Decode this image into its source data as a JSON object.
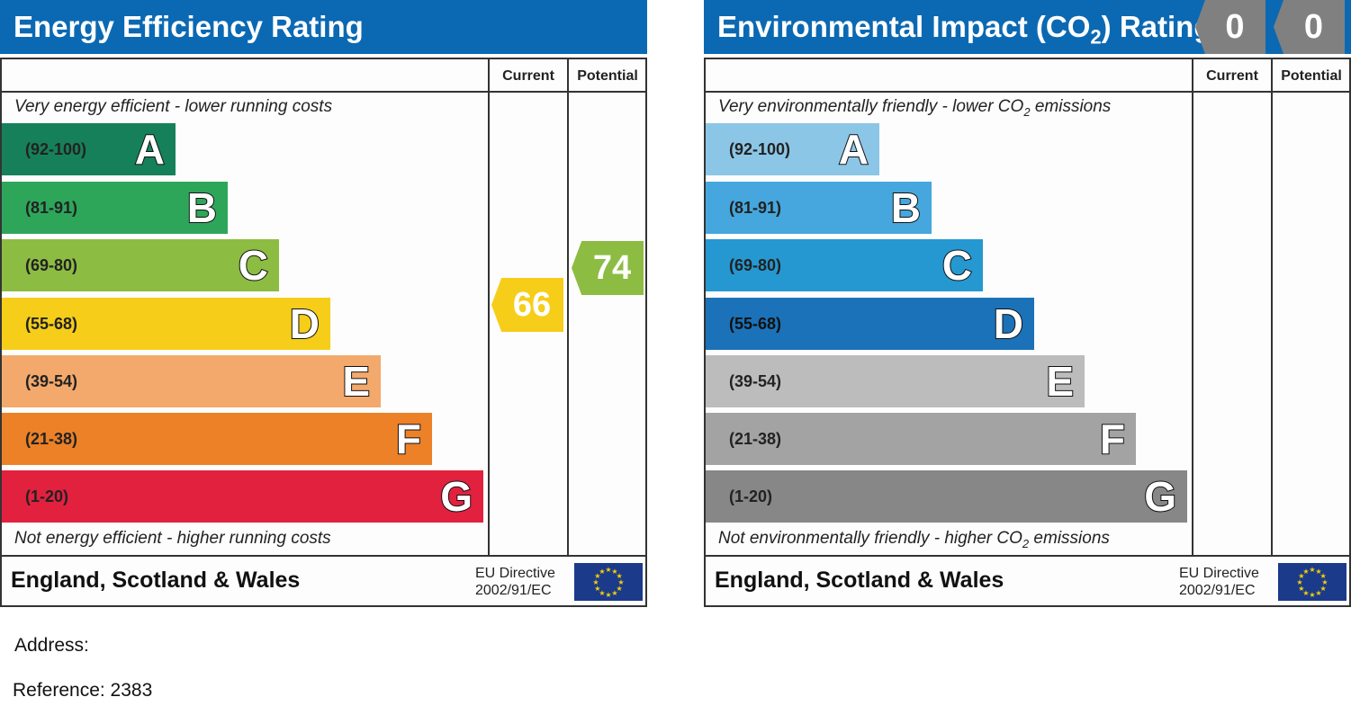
{
  "energy": {
    "title": "Energy Efficiency Rating",
    "col_current": "Current",
    "col_potential": "Potential",
    "top_note": "Very energy efficient - lower running costs",
    "bottom_note": "Not energy efficient - higher running costs",
    "bands": [
      {
        "range": "(92-100)",
        "letter": "A",
        "color": "#16805a"
      },
      {
        "range": "(81-91)",
        "letter": "B",
        "color": "#2ea65a"
      },
      {
        "range": "(69-80)",
        "letter": "C",
        "color": "#8dbc43"
      },
      {
        "range": "(55-68)",
        "letter": "D",
        "color": "#f6cd19"
      },
      {
        "range": "(39-54)",
        "letter": "E",
        "color": "#f3a96c"
      },
      {
        "range": "(21-38)",
        "letter": "F",
        "color": "#ec8127"
      },
      {
        "range": "(1-20)",
        "letter": "G",
        "color": "#e2213f"
      }
    ],
    "current": {
      "value": "66",
      "band": "D",
      "color": "#f6cd19"
    },
    "potential": {
      "value": "74",
      "band": "C",
      "color": "#8dbc43"
    },
    "region": "England, Scotland & Wales",
    "eu_line1": "EU Directive",
    "eu_line2": "2002/91/EC"
  },
  "environment": {
    "title": "Environmental Impact (CO",
    "title_sub": "2",
    "title_end": ") Rating",
    "col_current": "Current",
    "col_potential": "Potential",
    "top_note": "Very environmentally friendly - lower CO",
    "top_note_end": " emissions",
    "bottom_note": "Not environmentally friendly - higher CO",
    "bottom_note_end": " emissions",
    "sub2": "2",
    "bands": [
      {
        "range": "(92-100)",
        "letter": "A",
        "color": "#8cc6e7"
      },
      {
        "range": "(81-91)",
        "letter": "B",
        "color": "#45a7dd"
      },
      {
        "range": "(69-80)",
        "letter": "C",
        "color": "#2598d2"
      },
      {
        "range": "(55-68)",
        "letter": "D",
        "color": "#1b72b8"
      },
      {
        "range": "(39-54)",
        "letter": "E",
        "color": "#bcbcbc"
      },
      {
        "range": "(21-38)",
        "letter": "F",
        "color": "#a3a3a3"
      },
      {
        "range": "(1-20)",
        "letter": "G",
        "color": "#878787"
      }
    ],
    "current": {
      "value": "0",
      "color": "#808080"
    },
    "potential": {
      "value": "0",
      "color": "#808080"
    },
    "region": "England, Scotland & Wales",
    "eu_line1": "EU Directive",
    "eu_line2": "2002/91/EC"
  },
  "address_label": "Address:",
  "reference": "Reference: 2383"
}
